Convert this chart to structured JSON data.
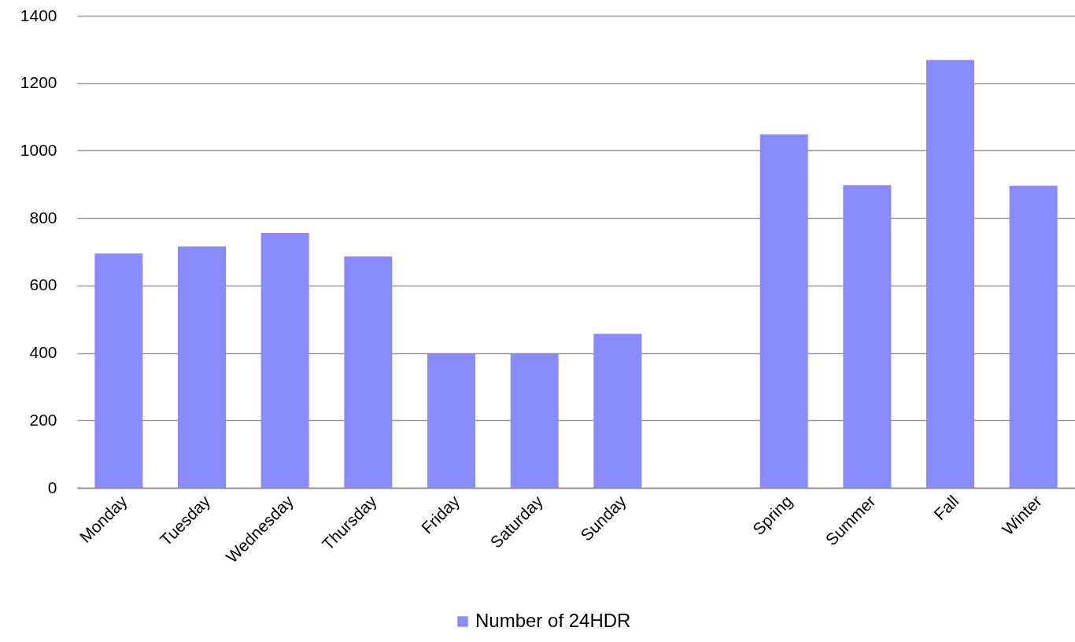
{
  "chart_data": {
    "type": "bar",
    "categories": [
      "Monday",
      "Tuesday",
      "Wednesday",
      "Thursday",
      "Friday",
      "Saturday",
      "Sunday",
      null,
      "Spring",
      "Summer",
      "Fall",
      "Winter"
    ],
    "series": [
      {
        "name": "Number of 24HDR",
        "color": "#8a8aff",
        "values": [
          695,
          716,
          756,
          686,
          399,
          397,
          457,
          null,
          1048,
          898,
          1269,
          896
        ]
      }
    ],
    "ylim": [
      0,
      1400
    ],
    "yticks": [
      0,
      200,
      400,
      600,
      800,
      1000,
      1200,
      1400
    ],
    "grid": "y",
    "legend": "bottom"
  }
}
